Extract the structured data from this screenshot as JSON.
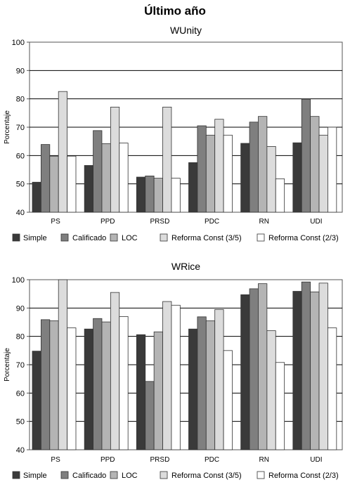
{
  "page": {
    "title": "Último año"
  },
  "chart_data": [
    {
      "type": "bar",
      "title": "WUnity",
      "ylabel": "Porcentaje",
      "xlabel": "",
      "ylim": [
        40,
        100
      ],
      "yticks": [
        40,
        50,
        60,
        70,
        80,
        90,
        100
      ],
      "grid": true,
      "legend_position": "bottom",
      "categories": [
        "PS",
        "PPD",
        "PRSD",
        "PDC",
        "RN",
        "UDI"
      ],
      "series": [
        {
          "name": "Simple",
          "color": "#3a3a3a",
          "values": [
            50.6,
            56.5,
            52.4,
            57.5,
            64.3,
            64.5
          ]
        },
        {
          "name": "Calificado",
          "color": "#7f7f7f",
          "values": [
            63.9,
            68.8,
            52.8,
            70.5,
            71.8,
            79.9
          ]
        },
        {
          "name": "LOC",
          "color": "#b4b4b4",
          "values": [
            59.8,
            64.2,
            52.0,
            67.2,
            73.8,
            73.8
          ]
        },
        {
          "name": "Reforma Const (3/5)",
          "color": "#dcdcdc",
          "values": [
            82.6,
            77.1,
            77.1,
            72.8,
            63.2,
            67.2
          ]
        },
        {
          "name": "Reforma Const (2/3)",
          "color": "#ffffff",
          "values": [
            59.8,
            64.4,
            52.0,
            67.2,
            51.8,
            70.0
          ]
        }
      ]
    },
    {
      "type": "bar",
      "title": "WRice",
      "ylabel": "Porcentaje",
      "xlabel": "",
      "ylim": [
        40,
        100
      ],
      "yticks": [
        40,
        50,
        60,
        70,
        80,
        90,
        100
      ],
      "grid": true,
      "legend_position": "bottom",
      "categories": [
        "PS",
        "PPD",
        "PRSD",
        "PDC",
        "RN",
        "UDI"
      ],
      "series": [
        {
          "name": "Simple",
          "color": "#3a3a3a",
          "values": [
            74.8,
            82.6,
            80.6,
            82.6,
            94.7,
            95.9
          ]
        },
        {
          "name": "Calificado",
          "color": "#7f7f7f",
          "values": [
            85.9,
            86.3,
            64.1,
            86.9,
            96.8,
            99.2
          ]
        },
        {
          "name": "LOC",
          "color": "#b4b4b4",
          "values": [
            85.5,
            85.1,
            81.6,
            85.5,
            98.6,
            95.7
          ]
        },
        {
          "name": "Reforma Const (3/5)",
          "color": "#dcdcdc",
          "values": [
            100.6,
            95.5,
            92.3,
            89.5,
            82.0,
            98.8
          ]
        },
        {
          "name": "Reforma Const (2/3)",
          "color": "#ffffff",
          "values": [
            83.0,
            87.0,
            91.0,
            75.0,
            70.8,
            83.0
          ]
        }
      ]
    }
  ]
}
